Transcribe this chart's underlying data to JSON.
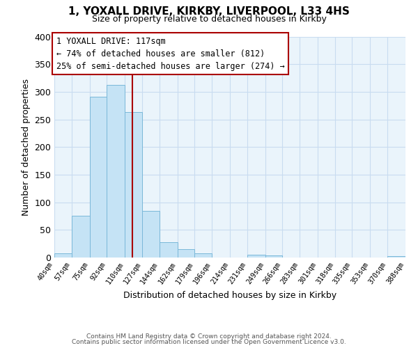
{
  "title_line1": "1, YOXALL DRIVE, KIRKBY, LIVERPOOL, L33 4HS",
  "title_line2": "Size of property relative to detached houses in Kirkby",
  "xlabel": "Distribution of detached houses by size in Kirkby",
  "ylabel": "Number of detached properties",
  "footer_line1": "Contains HM Land Registry data © Crown copyright and database right 2024.",
  "footer_line2": "Contains public sector information licensed under the Open Government Licence v3.0.",
  "bin_edges": [
    40,
    57,
    75,
    92,
    110,
    127,
    144,
    162,
    179,
    196,
    214,
    231,
    249,
    266,
    283,
    301,
    318,
    335,
    353,
    370,
    388
  ],
  "bin_labels": [
    "40sqm",
    "57sqm",
    "75sqm",
    "92sqm",
    "110sqm",
    "127sqm",
    "144sqm",
    "162sqm",
    "179sqm",
    "196sqm",
    "214sqm",
    "231sqm",
    "249sqm",
    "266sqm",
    "283sqm",
    "301sqm",
    "318sqm",
    "335sqm",
    "353sqm",
    "370sqm",
    "388sqm"
  ],
  "counts": [
    8,
    75,
    291,
    312,
    263,
    85,
    28,
    15,
    8,
    0,
    0,
    5,
    4,
    0,
    0,
    0,
    0,
    0,
    0,
    2
  ],
  "bar_color": "#C5E3F5",
  "bar_edge_color": "#7AB8D9",
  "vline_x": 117,
  "vline_color": "#AA0000",
  "annotation_text": "1 YOXALL DRIVE: 117sqm\n← 74% of detached houses are smaller (812)\n25% of semi-detached houses are larger (274) →",
  "box_edge_color": "#AA0000",
  "ylim": [
    0,
    400
  ],
  "yticks": [
    0,
    50,
    100,
    150,
    200,
    250,
    300,
    350,
    400
  ],
  "bg_color": "#FFFFFF",
  "plot_bg_color": "#EAF4FB",
  "grid_color": "#C8DCF0"
}
